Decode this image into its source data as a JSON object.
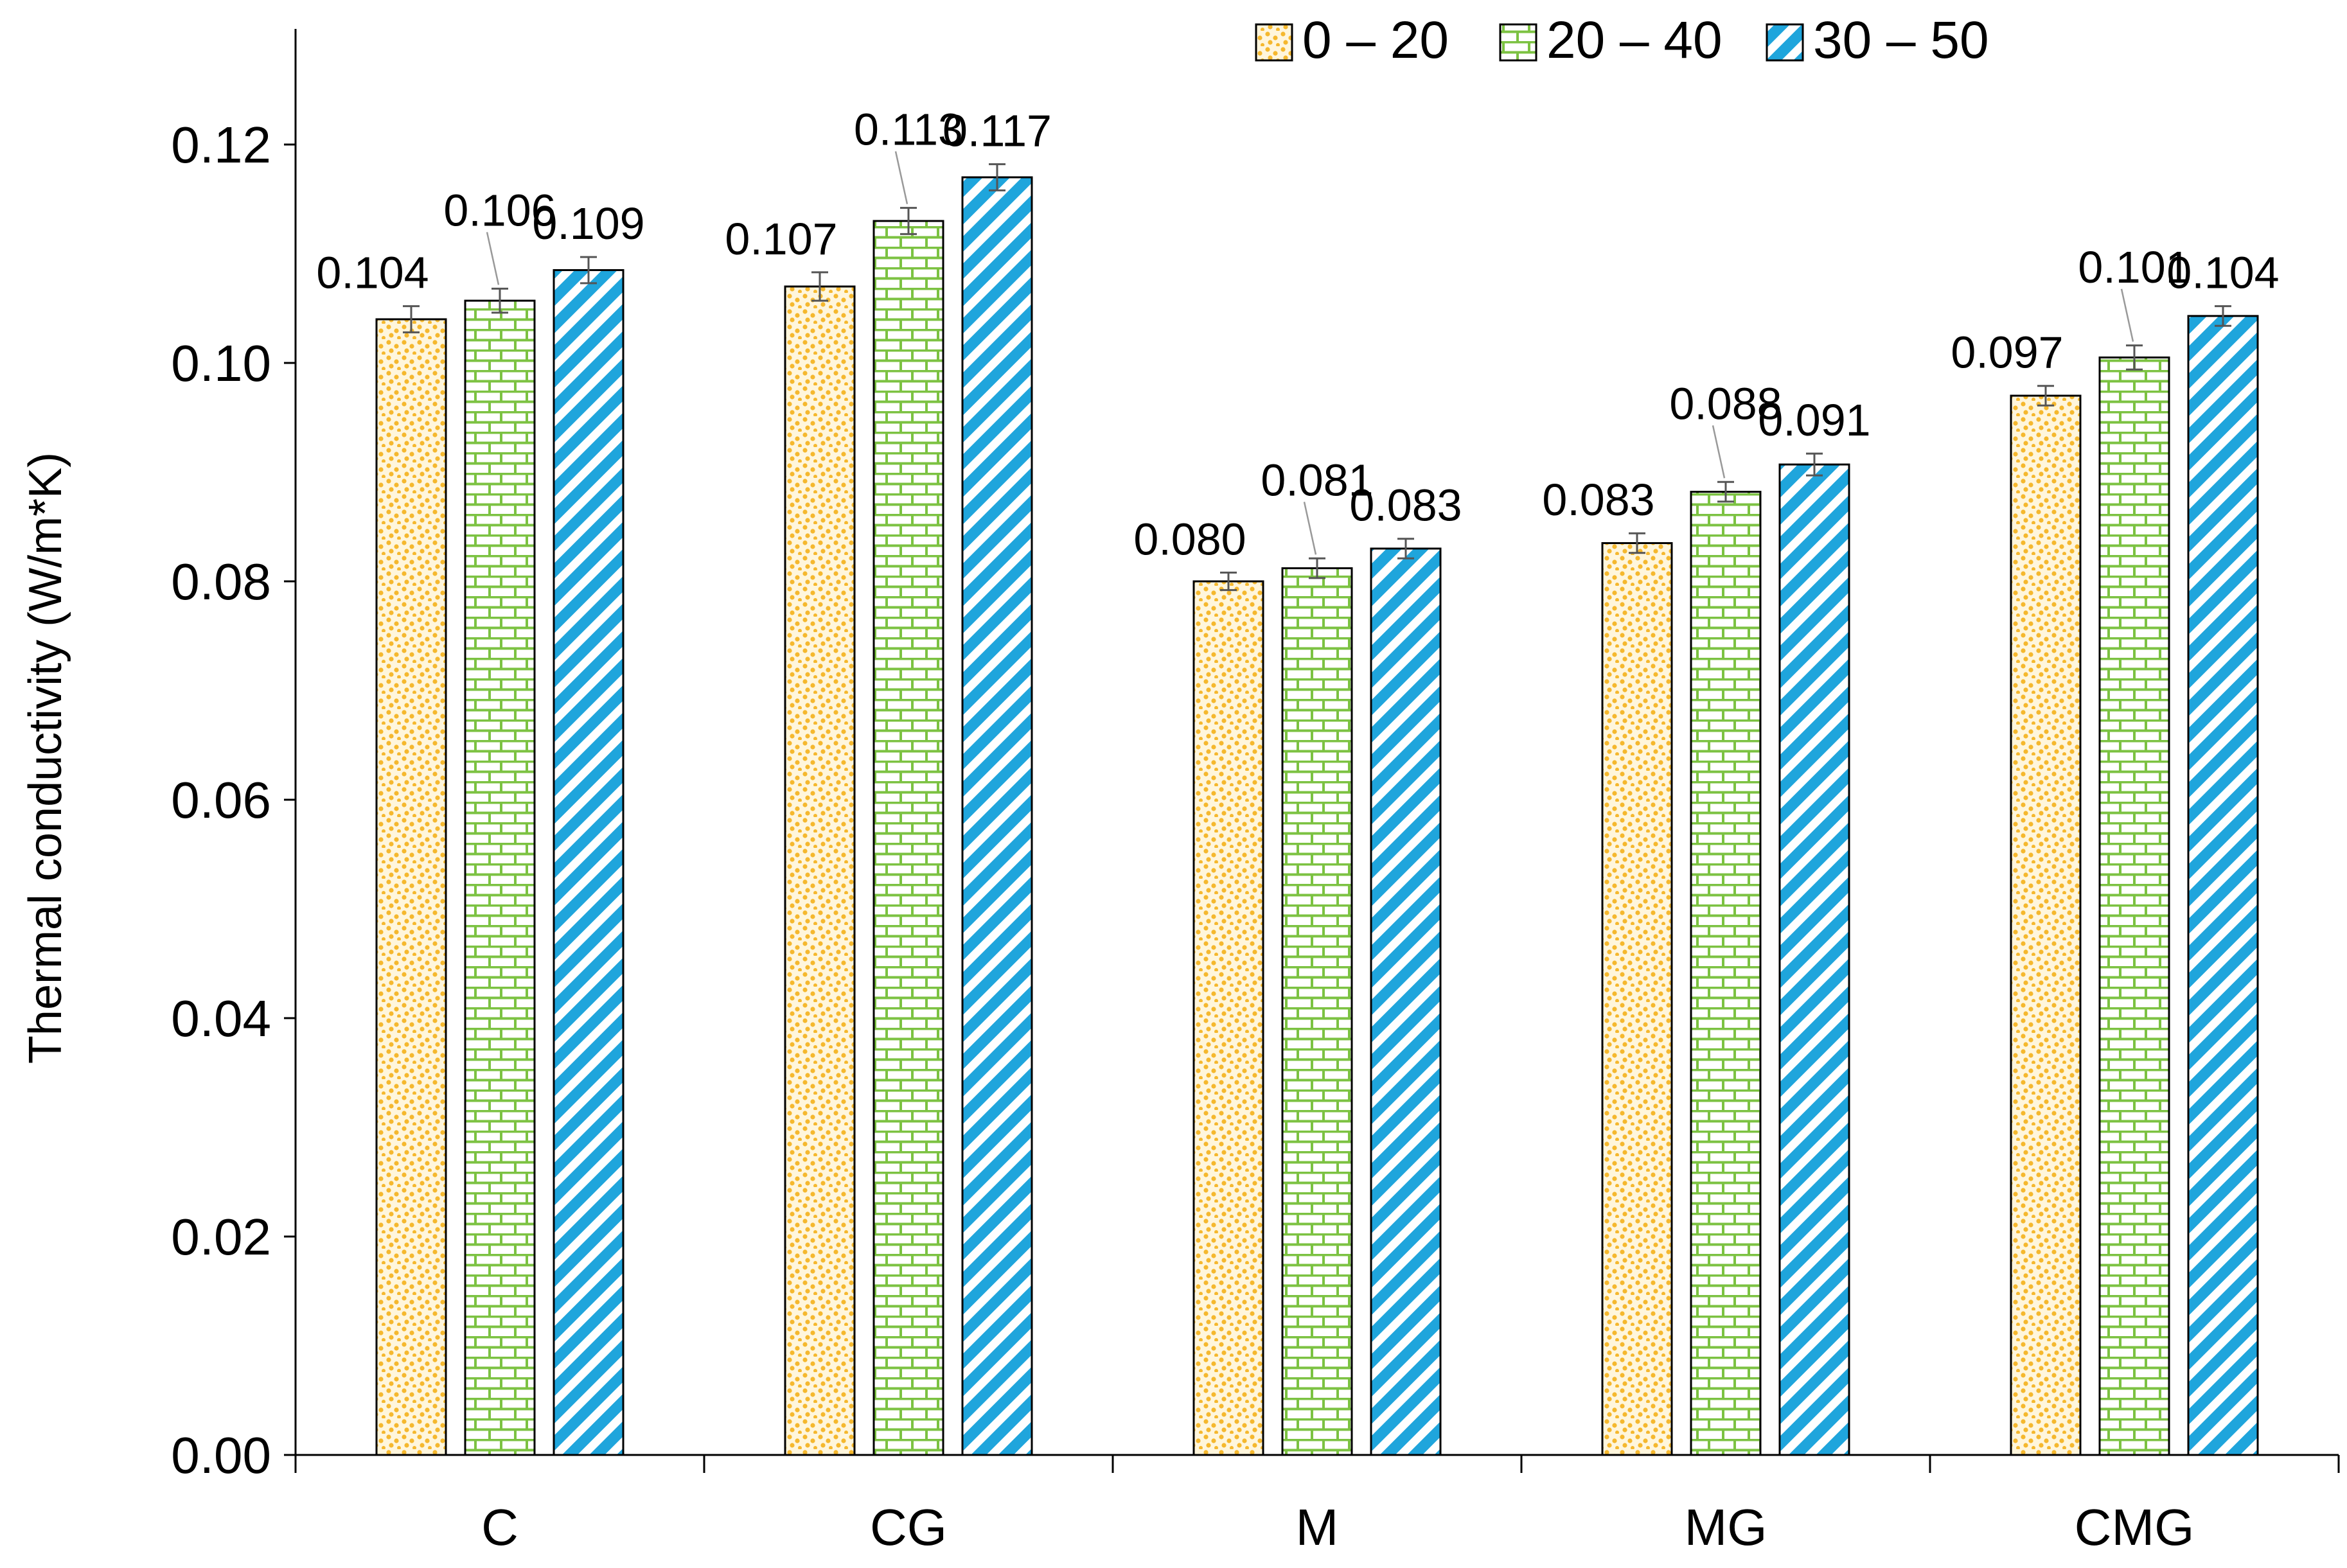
{
  "chart_data": {
    "type": "bar",
    "title": "",
    "xlabel": "",
    "ylabel": "Thermal conductivity (W/m*K)",
    "ylim": [
      0,
      0.13
    ],
    "yticks": [
      "0.00",
      "0.02",
      "0.04",
      "0.06",
      "0.08",
      "0.10",
      "0.12"
    ],
    "categories": [
      "C",
      "CG",
      "M",
      "MG",
      "CMG"
    ],
    "legend_position": "top-right",
    "series": [
      {
        "name": "0 – 20",
        "pattern": "dots",
        "color": "#F5B82E",
        "values": [
          0.104,
          0.107,
          0.08,
          0.0835,
          0.097
        ],
        "errors": [
          0.0012,
          0.0013,
          0.0008,
          0.0009,
          0.0009
        ],
        "labels": [
          "0.104",
          "0.107",
          "0.080",
          "0.083",
          "0.097"
        ]
      },
      {
        "name": "20 – 40",
        "pattern": "bricks",
        "color": "#7CC242",
        "values": [
          0.1057,
          0.113,
          0.0812,
          0.0882,
          0.1005
        ],
        "errors": [
          0.0011,
          0.0012,
          0.0009,
          0.0009,
          0.0011
        ],
        "labels": [
          "0.106",
          "0.113",
          "0.081",
          "0.088",
          "0.101"
        ]
      },
      {
        "name": "30 – 50",
        "pattern": "stripes",
        "color": "#1FA5DC",
        "values": [
          0.1085,
          0.117,
          0.083,
          0.0907,
          0.1043
        ],
        "errors": [
          0.0012,
          0.0012,
          0.0009,
          0.001,
          0.0009
        ],
        "labels": [
          "0.109",
          "0.117",
          "0.083",
          "0.091",
          "0.104"
        ]
      }
    ]
  }
}
